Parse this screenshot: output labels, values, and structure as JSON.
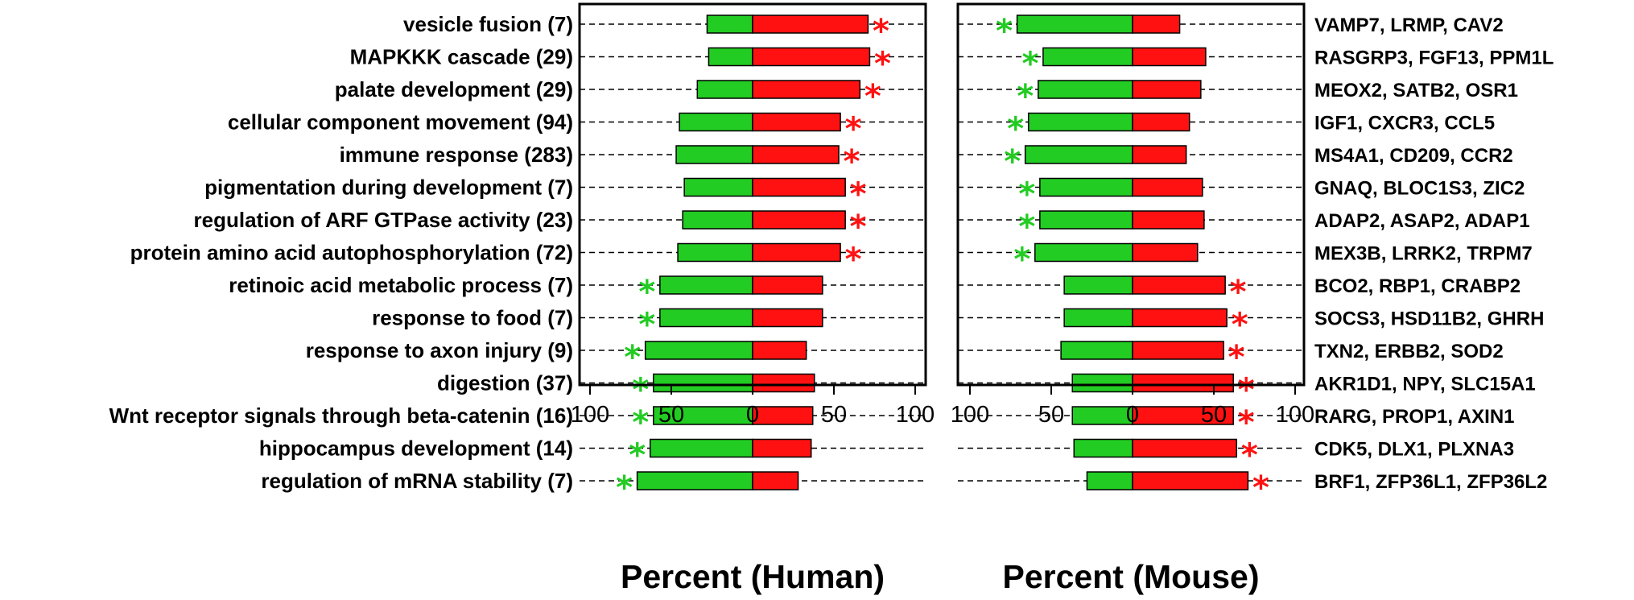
{
  "colors": {
    "down": "#22cc22",
    "up": "#ff1111",
    "frame": "#000000",
    "dash": "#000000"
  },
  "chart_data": {
    "type": "bar",
    "orientation": "horizontal-diverging",
    "categories": [
      "vesicle fusion (7)",
      "MAPKKK cascade (29)",
      "palate development (29)",
      "cellular component movement (94)",
      "immune response (283)",
      "pigmentation during development (7)",
      "regulation of ARF GTPase activity (23)",
      "protein amino acid autophosphorylation (72)",
      "retinoic acid metabolic process (7)",
      "response to food (7)",
      "response to axon injury (9)",
      "digestion (37)",
      "Wnt receptor signals through beta-catenin (16)",
      "hippocampus development (14)",
      "regulation of mRNA stability (7)"
    ],
    "gene_labels": [
      "VAMP7, LRMP, CAV2",
      "RASGRP3, FGF13, PPM1L",
      "MEOX2, SATB2, OSR1",
      "IGF1, CXCR3, CCL5",
      "MS4A1, CD209, CCR2",
      "GNAQ, BLOC1S3, ZIC2",
      "ADAP2, ASAP2, ADAP1",
      "MEX3B, LRRK2, TRPM7",
      "BCO2, RBP1, CRABP2",
      "SOCS3, HSD11B2, GHRH",
      "TXN2, ERBB2, SOD2",
      "AKR1D1, NPY, SLC15A1",
      "RARG, PROP1, AXIN1",
      "CDK5, DLX1, PLXNA3",
      "BRF1, ZFP36L1, ZFP36L2"
    ],
    "panels": [
      {
        "name": "Human",
        "xlabel": "Percent (Human)",
        "xlim": [
          -100,
          100
        ],
        "ticks": [
          -100,
          -50,
          0,
          50,
          100
        ],
        "tick_labels": [
          "100",
          "50",
          "0",
          "50",
          "100"
        ],
        "green_percent": [
          28,
          27,
          34,
          45,
          47,
          42,
          43,
          46,
          57,
          57,
          66,
          61,
          61,
          63,
          71
        ],
        "red_percent": [
          71,
          72,
          66,
          54,
          53,
          57,
          57,
          54,
          43,
          43,
          33,
          38,
          37,
          36,
          28
        ],
        "star": [
          "up",
          "up",
          "up",
          "up",
          "up",
          "up",
          "up",
          "up",
          "down",
          "down",
          "down",
          "down",
          "down",
          "down",
          "down"
        ]
      },
      {
        "name": "Mouse",
        "xlabel": "Percent (Mouse)",
        "xlim": [
          -100,
          100
        ],
        "ticks": [
          -100,
          -50,
          0,
          50,
          100
        ],
        "tick_labels": [
          "100",
          "50",
          "0",
          "50",
          "100"
        ],
        "green_percent": [
          71,
          55,
          58,
          64,
          66,
          57,
          57,
          60,
          42,
          42,
          44,
          37,
          37,
          36,
          28
        ],
        "red_percent": [
          29,
          45,
          42,
          35,
          33,
          43,
          44,
          40,
          57,
          58,
          56,
          62,
          62,
          64,
          71
        ],
        "star": [
          "down",
          "down",
          "down",
          "down",
          "down",
          "down",
          "down",
          "down",
          "up",
          "up",
          "up",
          "up",
          "up",
          "up",
          "up"
        ]
      }
    ],
    "star_glyph": "*",
    "grid": false,
    "legend": "none"
  }
}
